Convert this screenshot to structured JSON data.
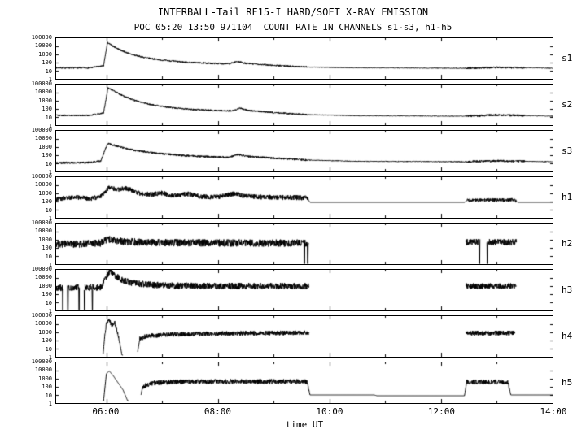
{
  "header": {
    "title": "INTERBALL-Tail RF15-I HARD/SOFT X-RAY EMISSION",
    "subtitle": "POC 05:20 13:50 971104  COUNT RATE IN CHANNELS s1-s3, h1-h5"
  },
  "chart_data": {
    "type": "line",
    "title": "INTERBALL-Tail RF15-I HARD/SOFT X-RAY EMISSION",
    "subtitle": "POC 05:20 13:50 971104  COUNT RATE IN CHANNELS s1-s3, h1-h5",
    "xlabel": "time UT",
    "y_scale": "log",
    "y_range_log": [
      0,
      5
    ],
    "t_range": [
      5.1,
      14.0
    ],
    "x_ticks": [
      {
        "t": 6,
        "label": "06:00"
      },
      {
        "t": 8,
        "label": "08:00"
      },
      {
        "t": 10,
        "label": "10:00"
      },
      {
        "t": 12,
        "label": "12:00"
      },
      {
        "t": 14,
        "label": "14:00"
      }
    ],
    "y_ticks": [
      {
        "log": 5,
        "label": "100000"
      },
      {
        "log": 4,
        "label": "10000"
      },
      {
        "log": 3,
        "label": "1000"
      },
      {
        "log": 2,
        "label": "100"
      },
      {
        "log": 1,
        "label": "10"
      },
      {
        "log": 0,
        "label": "1"
      }
    ],
    "panels": [
      {
        "id": "s1",
        "base": [
          [
            5.1,
            1.35
          ],
          [
            5.7,
            1.35
          ],
          [
            5.95,
            1.6
          ],
          [
            6.02,
            4.45
          ],
          [
            6.1,
            4.1
          ],
          [
            6.25,
            3.55
          ],
          [
            6.45,
            3.0
          ],
          [
            6.7,
            2.6
          ],
          [
            7.0,
            2.3
          ],
          [
            7.4,
            2.05
          ],
          [
            7.9,
            1.9
          ],
          [
            8.2,
            1.85
          ],
          [
            8.35,
            2.15
          ],
          [
            8.5,
            1.9
          ],
          [
            9.0,
            1.65
          ],
          [
            9.6,
            1.45
          ],
          [
            10.5,
            1.35
          ],
          [
            12.4,
            1.3
          ],
          [
            13.0,
            1.4
          ],
          [
            13.6,
            1.35
          ],
          [
            14.0,
            1.3
          ]
        ],
        "noise": [
          [
            5.1,
            9.6,
            0.1
          ],
          [
            9.6,
            12.45,
            0.04
          ],
          [
            12.45,
            13.5,
            0.12
          ],
          [
            13.5,
            14.0,
            0.04
          ]
        ],
        "gaps": [],
        "dropouts": []
      },
      {
        "id": "s2",
        "base": [
          [
            5.1,
            1.2
          ],
          [
            5.7,
            1.2
          ],
          [
            5.95,
            1.5
          ],
          [
            6.03,
            4.6
          ],
          [
            6.15,
            4.15
          ],
          [
            6.3,
            3.6
          ],
          [
            6.5,
            3.05
          ],
          [
            6.75,
            2.6
          ],
          [
            7.1,
            2.2
          ],
          [
            7.5,
            1.95
          ],
          [
            8.0,
            1.8
          ],
          [
            8.25,
            1.75
          ],
          [
            8.4,
            2.1
          ],
          [
            8.55,
            1.8
          ],
          [
            9.1,
            1.5
          ],
          [
            9.6,
            1.3
          ],
          [
            10.5,
            1.15
          ],
          [
            12.4,
            1.1
          ],
          [
            13.0,
            1.25
          ],
          [
            14.0,
            1.1
          ]
        ],
        "noise": [
          [
            5.1,
            9.6,
            0.1
          ],
          [
            9.6,
            12.45,
            0.04
          ],
          [
            12.45,
            13.5,
            0.13
          ],
          [
            13.5,
            14.0,
            0.04
          ]
        ],
        "gaps": [],
        "dropouts": []
      },
      {
        "id": "s3",
        "base": [
          [
            5.1,
            1.05
          ],
          [
            5.7,
            1.1
          ],
          [
            5.9,
            1.3
          ],
          [
            6.02,
            3.45
          ],
          [
            6.2,
            3.1
          ],
          [
            6.5,
            2.6
          ],
          [
            6.9,
            2.25
          ],
          [
            7.4,
            1.95
          ],
          [
            7.9,
            1.8
          ],
          [
            8.2,
            1.75
          ],
          [
            8.35,
            2.1
          ],
          [
            8.55,
            1.85
          ],
          [
            9.1,
            1.6
          ],
          [
            9.6,
            1.4
          ],
          [
            10.5,
            1.25
          ],
          [
            12.4,
            1.2
          ],
          [
            13.0,
            1.3
          ],
          [
            14.0,
            1.2
          ]
        ],
        "noise": [
          [
            5.1,
            9.6,
            0.12
          ],
          [
            9.6,
            12.45,
            0.05
          ],
          [
            12.45,
            13.5,
            0.13
          ],
          [
            13.5,
            14.0,
            0.05
          ]
        ],
        "gaps": [],
        "dropouts": []
      },
      {
        "id": "h1",
        "base": [
          [
            5.1,
            2.3
          ],
          [
            5.4,
            2.55
          ],
          [
            5.7,
            2.35
          ],
          [
            5.9,
            2.6
          ],
          [
            6.05,
            3.75
          ],
          [
            6.2,
            3.45
          ],
          [
            6.35,
            3.65
          ],
          [
            6.6,
            3.0
          ],
          [
            6.8,
            2.85
          ],
          [
            7.0,
            3.05
          ],
          [
            7.2,
            2.7
          ],
          [
            7.45,
            2.95
          ],
          [
            7.7,
            2.6
          ],
          [
            8.0,
            2.55
          ],
          [
            8.3,
            3.0
          ],
          [
            8.45,
            2.7
          ],
          [
            8.8,
            2.55
          ],
          [
            9.3,
            2.5
          ],
          [
            9.6,
            2.45
          ],
          [
            9.65,
            1.9
          ],
          [
            12.42,
            1.9
          ],
          [
            12.47,
            2.15
          ],
          [
            13.3,
            2.2
          ],
          [
            13.38,
            1.9
          ],
          [
            14.0,
            1.9
          ]
        ],
        "noise": [
          [
            5.1,
            9.62,
            0.3
          ],
          [
            12.47,
            13.35,
            0.22
          ]
        ],
        "gaps": [],
        "dropouts": []
      },
      {
        "id": "h2",
        "base": [
          [
            5.1,
            2.45
          ],
          [
            5.6,
            2.5
          ],
          [
            5.9,
            2.6
          ],
          [
            6.05,
            3.1
          ],
          [
            6.3,
            2.75
          ],
          [
            7.0,
            2.65
          ],
          [
            8.0,
            2.6
          ],
          [
            9.0,
            2.6
          ],
          [
            9.62,
            2.6
          ],
          [
            12.45,
            2.7
          ],
          [
            13.35,
            2.7
          ]
        ],
        "noise": [
          [
            5.1,
            9.62,
            0.45
          ],
          [
            12.45,
            13.35,
            0.4
          ]
        ],
        "gaps": [
          [
            9.63,
            12.44
          ],
          [
            12.7,
            12.82
          ],
          [
            13.36,
            14.0
          ]
        ],
        "dropouts": [
          9.55,
          9.61,
          12.69,
          12.83
        ]
      },
      {
        "id": "h3",
        "base": [
          [
            5.1,
            2.8
          ],
          [
            5.9,
            2.85
          ],
          [
            6.0,
            4.2
          ],
          [
            6.07,
            5.0
          ],
          [
            6.15,
            4.3
          ],
          [
            6.3,
            3.7
          ],
          [
            6.5,
            3.35
          ],
          [
            6.8,
            3.15
          ],
          [
            7.2,
            3.05
          ],
          [
            8.0,
            3.0
          ],
          [
            9.0,
            3.0
          ],
          [
            9.62,
            3.0
          ],
          [
            12.45,
            3.0
          ],
          [
            13.35,
            3.0
          ]
        ],
        "noise": [
          [
            5.1,
            9.63,
            0.4
          ],
          [
            12.45,
            13.35,
            0.35
          ]
        ],
        "gaps": [
          [
            5.23,
            5.3
          ],
          [
            5.52,
            5.6
          ],
          [
            9.64,
            12.44
          ],
          [
            13.36,
            14.0
          ]
        ],
        "dropouts": [
          5.22,
          5.31,
          5.51,
          5.61,
          5.75
        ]
      },
      {
        "id": "h4",
        "base": [
          [
            5.94,
            0.2
          ],
          [
            5.97,
            2.5
          ],
          [
            6.0,
            4.1
          ],
          [
            6.05,
            4.45
          ],
          [
            6.1,
            3.9
          ],
          [
            6.15,
            4.2
          ],
          [
            6.22,
            2.5
          ],
          [
            6.28,
            0.2
          ],
          [
            6.55,
            0.2
          ],
          [
            6.6,
            2.2
          ],
          [
            6.7,
            2.5
          ],
          [
            7.0,
            2.7
          ],
          [
            7.5,
            2.8
          ],
          [
            8.5,
            2.9
          ],
          [
            9.62,
            2.95
          ],
          [
            12.45,
            2.9
          ],
          [
            13.3,
            2.9
          ]
        ],
        "noise": [
          [
            5.97,
            6.25,
            0.25
          ],
          [
            6.6,
            9.63,
            0.28
          ],
          [
            12.45,
            13.32,
            0.3
          ]
        ],
        "gaps": [
          [
            5.1,
            5.94
          ],
          [
            6.3,
            6.56
          ],
          [
            9.64,
            12.44
          ],
          [
            13.33,
            14.0
          ]
        ],
        "dropouts": []
      },
      {
        "id": "h5",
        "base": [
          [
            5.95,
            0.3
          ],
          [
            6.0,
            3.6
          ],
          [
            6.05,
            3.95
          ],
          [
            6.12,
            3.4
          ],
          [
            6.2,
            2.6
          ],
          [
            6.3,
            1.6
          ],
          [
            6.38,
            0.3
          ],
          [
            6.6,
            0.3
          ],
          [
            6.65,
            2.0
          ],
          [
            6.8,
            2.45
          ],
          [
            7.2,
            2.6
          ],
          [
            8.0,
            2.65
          ],
          [
            9.0,
            2.65
          ],
          [
            9.6,
            2.65
          ],
          [
            9.65,
            1.0
          ],
          [
            10.8,
            1.0
          ],
          [
            10.85,
            0.9
          ],
          [
            12.42,
            0.9
          ],
          [
            12.46,
            2.6
          ],
          [
            13.2,
            2.6
          ],
          [
            13.25,
            1.0
          ],
          [
            14.0,
            1.0
          ]
        ],
        "noise": [
          [
            6.65,
            9.63,
            0.3
          ],
          [
            12.46,
            13.22,
            0.3
          ]
        ],
        "gaps": [
          [
            5.1,
            5.93
          ],
          [
            6.4,
            6.62
          ]
        ],
        "dropouts": []
      }
    ]
  }
}
